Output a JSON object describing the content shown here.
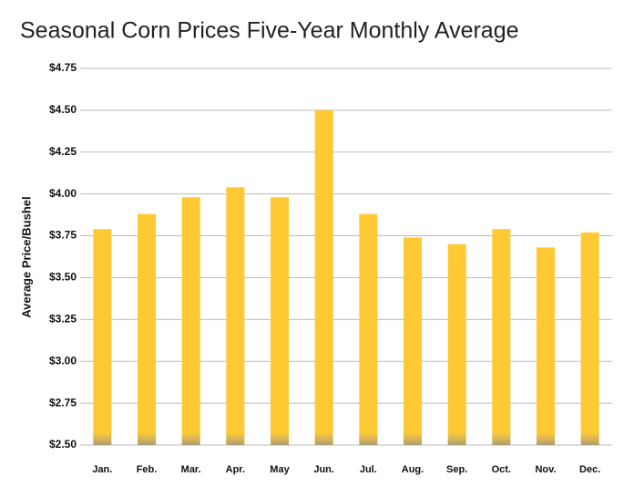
{
  "chart_data": {
    "type": "bar",
    "title": "Seasonal Corn Prices Five-Year Monthly Average",
    "y_label": "Average Price/Bushel",
    "categories": [
      "Jan.",
      "Feb.",
      "Mar.",
      "Apr.",
      "May",
      "Jun.",
      "Jul.",
      "Aug.",
      "Sep.",
      "Oct.",
      "Nov.",
      "Dec."
    ],
    "values": [
      3.79,
      3.88,
      3.98,
      4.04,
      3.98,
      4.5,
      3.88,
      3.74,
      3.7,
      3.79,
      3.68,
      3.77
    ],
    "color": "#ffc933",
    "ylim": [
      2.5,
      4.75
    ],
    "yticks": [
      {
        "value": 2.5,
        "label": "$2.50"
      },
      {
        "value": 2.75,
        "label": "$2.75"
      },
      {
        "value": 3.0,
        "label": "$3.00"
      },
      {
        "value": 3.25,
        "label": "$3.25"
      },
      {
        "value": 3.5,
        "label": "$3.50"
      },
      {
        "value": 3.75,
        "label": "$3.75"
      },
      {
        "value": 4.0,
        "label": "$4.00"
      },
      {
        "value": 4.25,
        "label": "$4.25"
      },
      {
        "value": 4.5,
        "label": "$4.50"
      },
      {
        "value": 4.75,
        "label": "$4.75"
      }
    ],
    "grid": true
  }
}
